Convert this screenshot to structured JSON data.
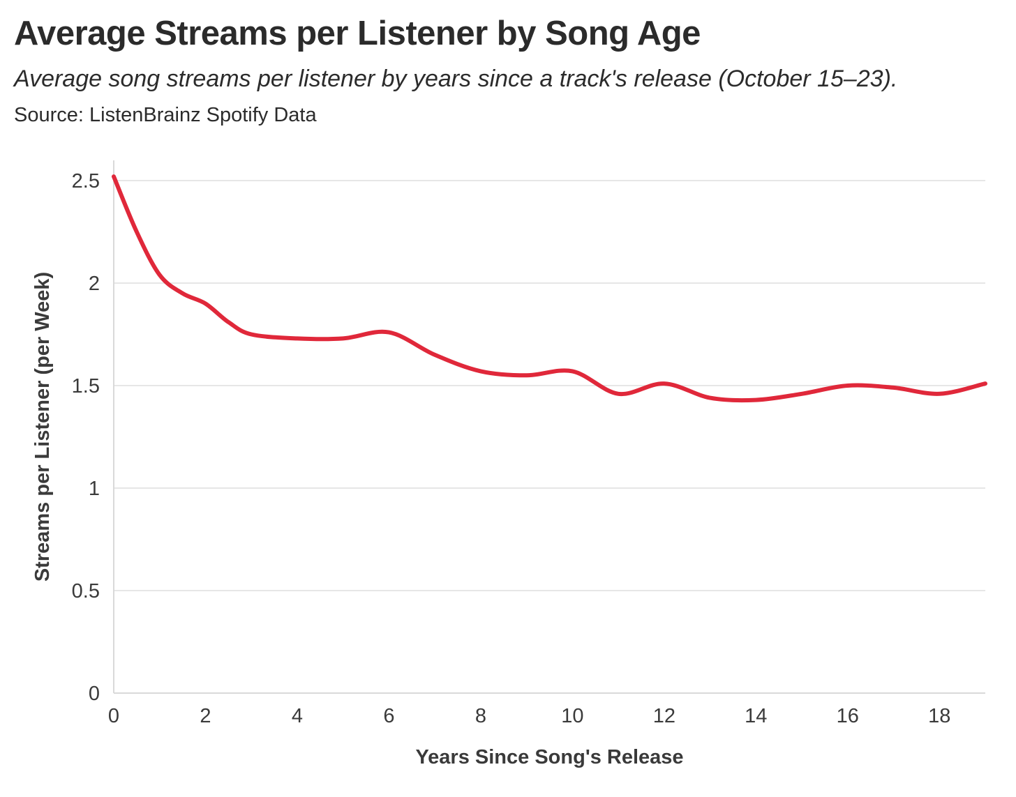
{
  "header": {
    "title": "Average Streams per Listener by Song Age",
    "subtitle": "Average song streams per listener by years since a track's release (October 15–23).",
    "source": "Source: ListenBrainz Spotify Data"
  },
  "colors": {
    "line": "#e0283a",
    "grid": "#e6e6e6",
    "axis": "#d9d9d9",
    "text": "#3a3a3a"
  },
  "chart_data": {
    "type": "line",
    "title": "Average Streams per Listener by Song Age",
    "xlabel": "Years Since Song's Release",
    "ylabel": "Streams per Listener (per Week)",
    "xlim": [
      0,
      19
    ],
    "ylim": [
      0,
      2.6
    ],
    "x_ticks": [
      0,
      2,
      4,
      6,
      8,
      10,
      12,
      14,
      16,
      18
    ],
    "x_tick_labels": [
      "0",
      "2",
      "4",
      "6",
      "8",
      "10",
      "12",
      "14",
      "16",
      "18"
    ],
    "y_ticks": [
      0,
      0.5,
      1,
      1.5,
      2,
      2.5
    ],
    "y_tick_labels": [
      "0",
      "0.5",
      "1",
      "1.5",
      "2",
      "2.5"
    ],
    "grid": true,
    "series": [
      {
        "name": "Average streams per listener",
        "x": [
          0,
          0.5,
          1,
          1.5,
          2,
          2.5,
          3,
          4,
          5,
          6,
          7,
          8,
          9,
          10,
          11,
          12,
          13,
          14,
          15,
          16,
          17,
          18,
          19
        ],
        "y": [
          2.52,
          2.25,
          2.04,
          1.95,
          1.9,
          1.81,
          1.75,
          1.73,
          1.73,
          1.76,
          1.65,
          1.57,
          1.55,
          1.57,
          1.46,
          1.51,
          1.44,
          1.43,
          1.46,
          1.5,
          1.49,
          1.46,
          1.51
        ]
      }
    ]
  }
}
